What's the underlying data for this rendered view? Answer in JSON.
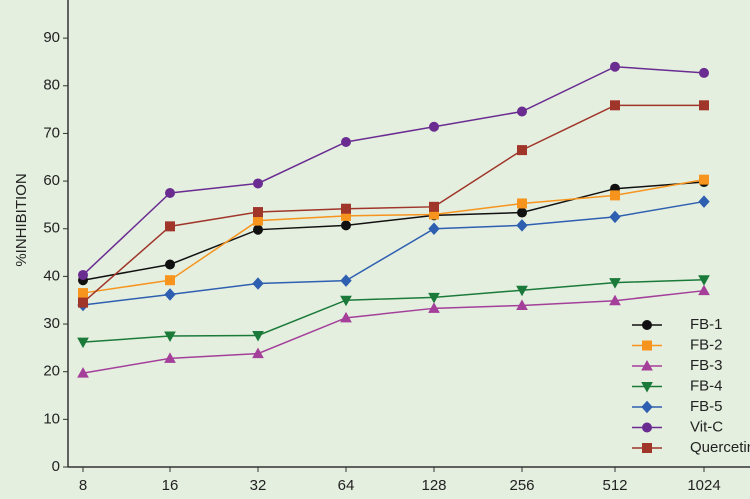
{
  "chart_data": {
    "type": "line",
    "y_label": "%INHIBITION",
    "categories": [
      "8",
      "16",
      "32",
      "64",
      "128",
      "256",
      "512",
      "1024"
    ],
    "ylim": [
      0,
      98
    ],
    "yticks": [
      0,
      10,
      20,
      30,
      40,
      50,
      60,
      70,
      80,
      90
    ],
    "legend": "lower right",
    "series": [
      {
        "name": "FB-1",
        "color": "#111111",
        "marker": "circle",
        "values": [
          39.2,
          42.5,
          49.8,
          50.7,
          52.8,
          53.4,
          58.4,
          59.8
        ]
      },
      {
        "name": "FB-2",
        "color": "#f7941d",
        "marker": "square",
        "values": [
          36.5,
          39.2,
          51.7,
          52.7,
          53,
          55.3,
          57,
          60.3
        ]
      },
      {
        "name": "FB-3",
        "color": "#a43f9a",
        "marker": "triangle",
        "values": [
          19.7,
          22.8,
          23.8,
          31.3,
          33.3,
          33.9,
          34.9,
          37
        ]
      },
      {
        "name": "FB-4",
        "color": "#1b7a3a",
        "marker": "triangle-down",
        "values": [
          26.2,
          27.5,
          27.6,
          35,
          35.6,
          37.1,
          38.7,
          39.3
        ]
      },
      {
        "name": "FB-5",
        "color": "#2e5fb0",
        "marker": "diamond",
        "values": [
          34,
          36.2,
          38.5,
          39.1,
          50,
          50.7,
          52.5,
          55.7
        ]
      },
      {
        "name": "Vit-C",
        "color": "#6a2c91",
        "marker": "circle",
        "values": [
          40.3,
          57.5,
          59.5,
          68.2,
          71.4,
          74.6,
          84,
          82.7
        ]
      },
      {
        "name": "Quercetin",
        "color": "#a0352a",
        "marker": "square",
        "values": [
          34.5,
          50.5,
          53.5,
          54.2,
          54.6,
          66.5,
          75.9,
          75.9
        ]
      }
    ]
  }
}
